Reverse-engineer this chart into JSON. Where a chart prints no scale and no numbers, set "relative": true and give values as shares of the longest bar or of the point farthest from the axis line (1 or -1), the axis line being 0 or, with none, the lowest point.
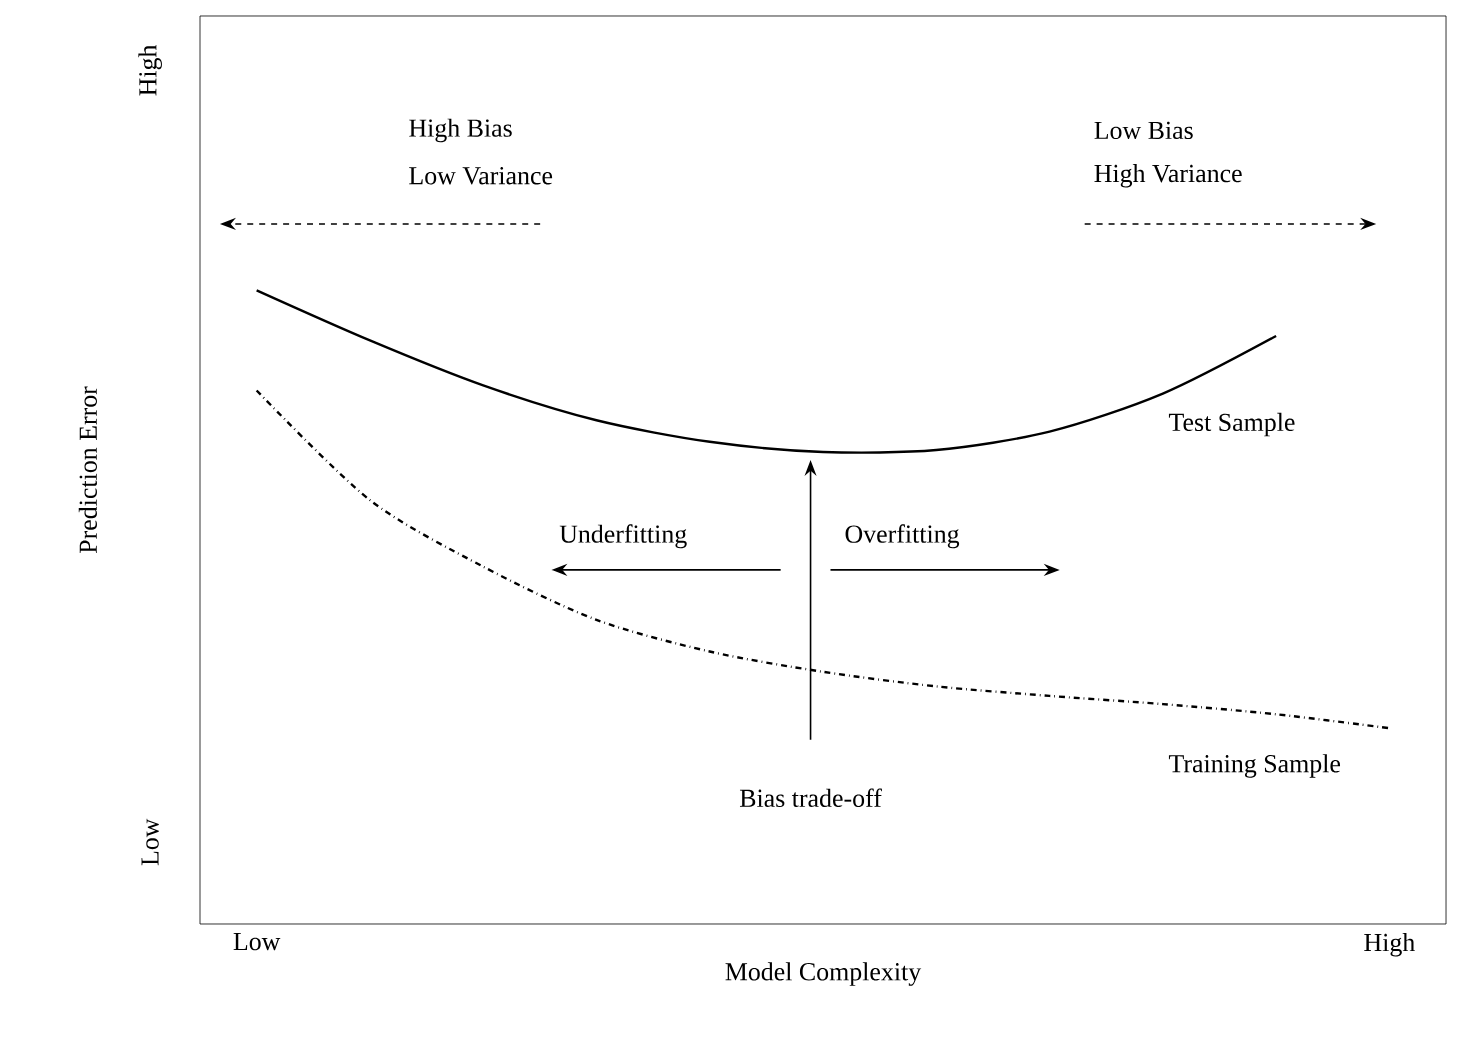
{
  "chart_data": {
    "type": "line",
    "xlabel": "Model Complexity",
    "ylabel": "Prediction Error",
    "relative": true,
    "categories": [
      "Low",
      null,
      null,
      null,
      null,
      null,
      null,
      null,
      null,
      null,
      "High"
    ],
    "grid": false,
    "legend": false,
    "series": [
      {
        "name": "Test Sample",
        "color": "#000000",
        "line_style": "solid",
        "values": [
          1,
          0.921,
          0.85,
          0.795,
          0.761,
          0.745,
          0.748,
          0.777,
          0.837,
          0.928,
          null
        ]
      },
      {
        "name": "Training Sample",
        "color": "#000000",
        "line_style": "dashdot",
        "values": [
          0.842,
          0.669,
          0.564,
          0.48,
          0.43,
          0.398,
          0.375,
          0.36,
          0.347,
          0.331,
          0.309
        ]
      }
    ],
    "annotations": [
      "High Bias",
      "Low Variance",
      "Low Bias",
      "High Variance",
      "Underfitting",
      "Overfitting",
      "Bias trade-off",
      "Low",
      "High"
    ]
  }
}
